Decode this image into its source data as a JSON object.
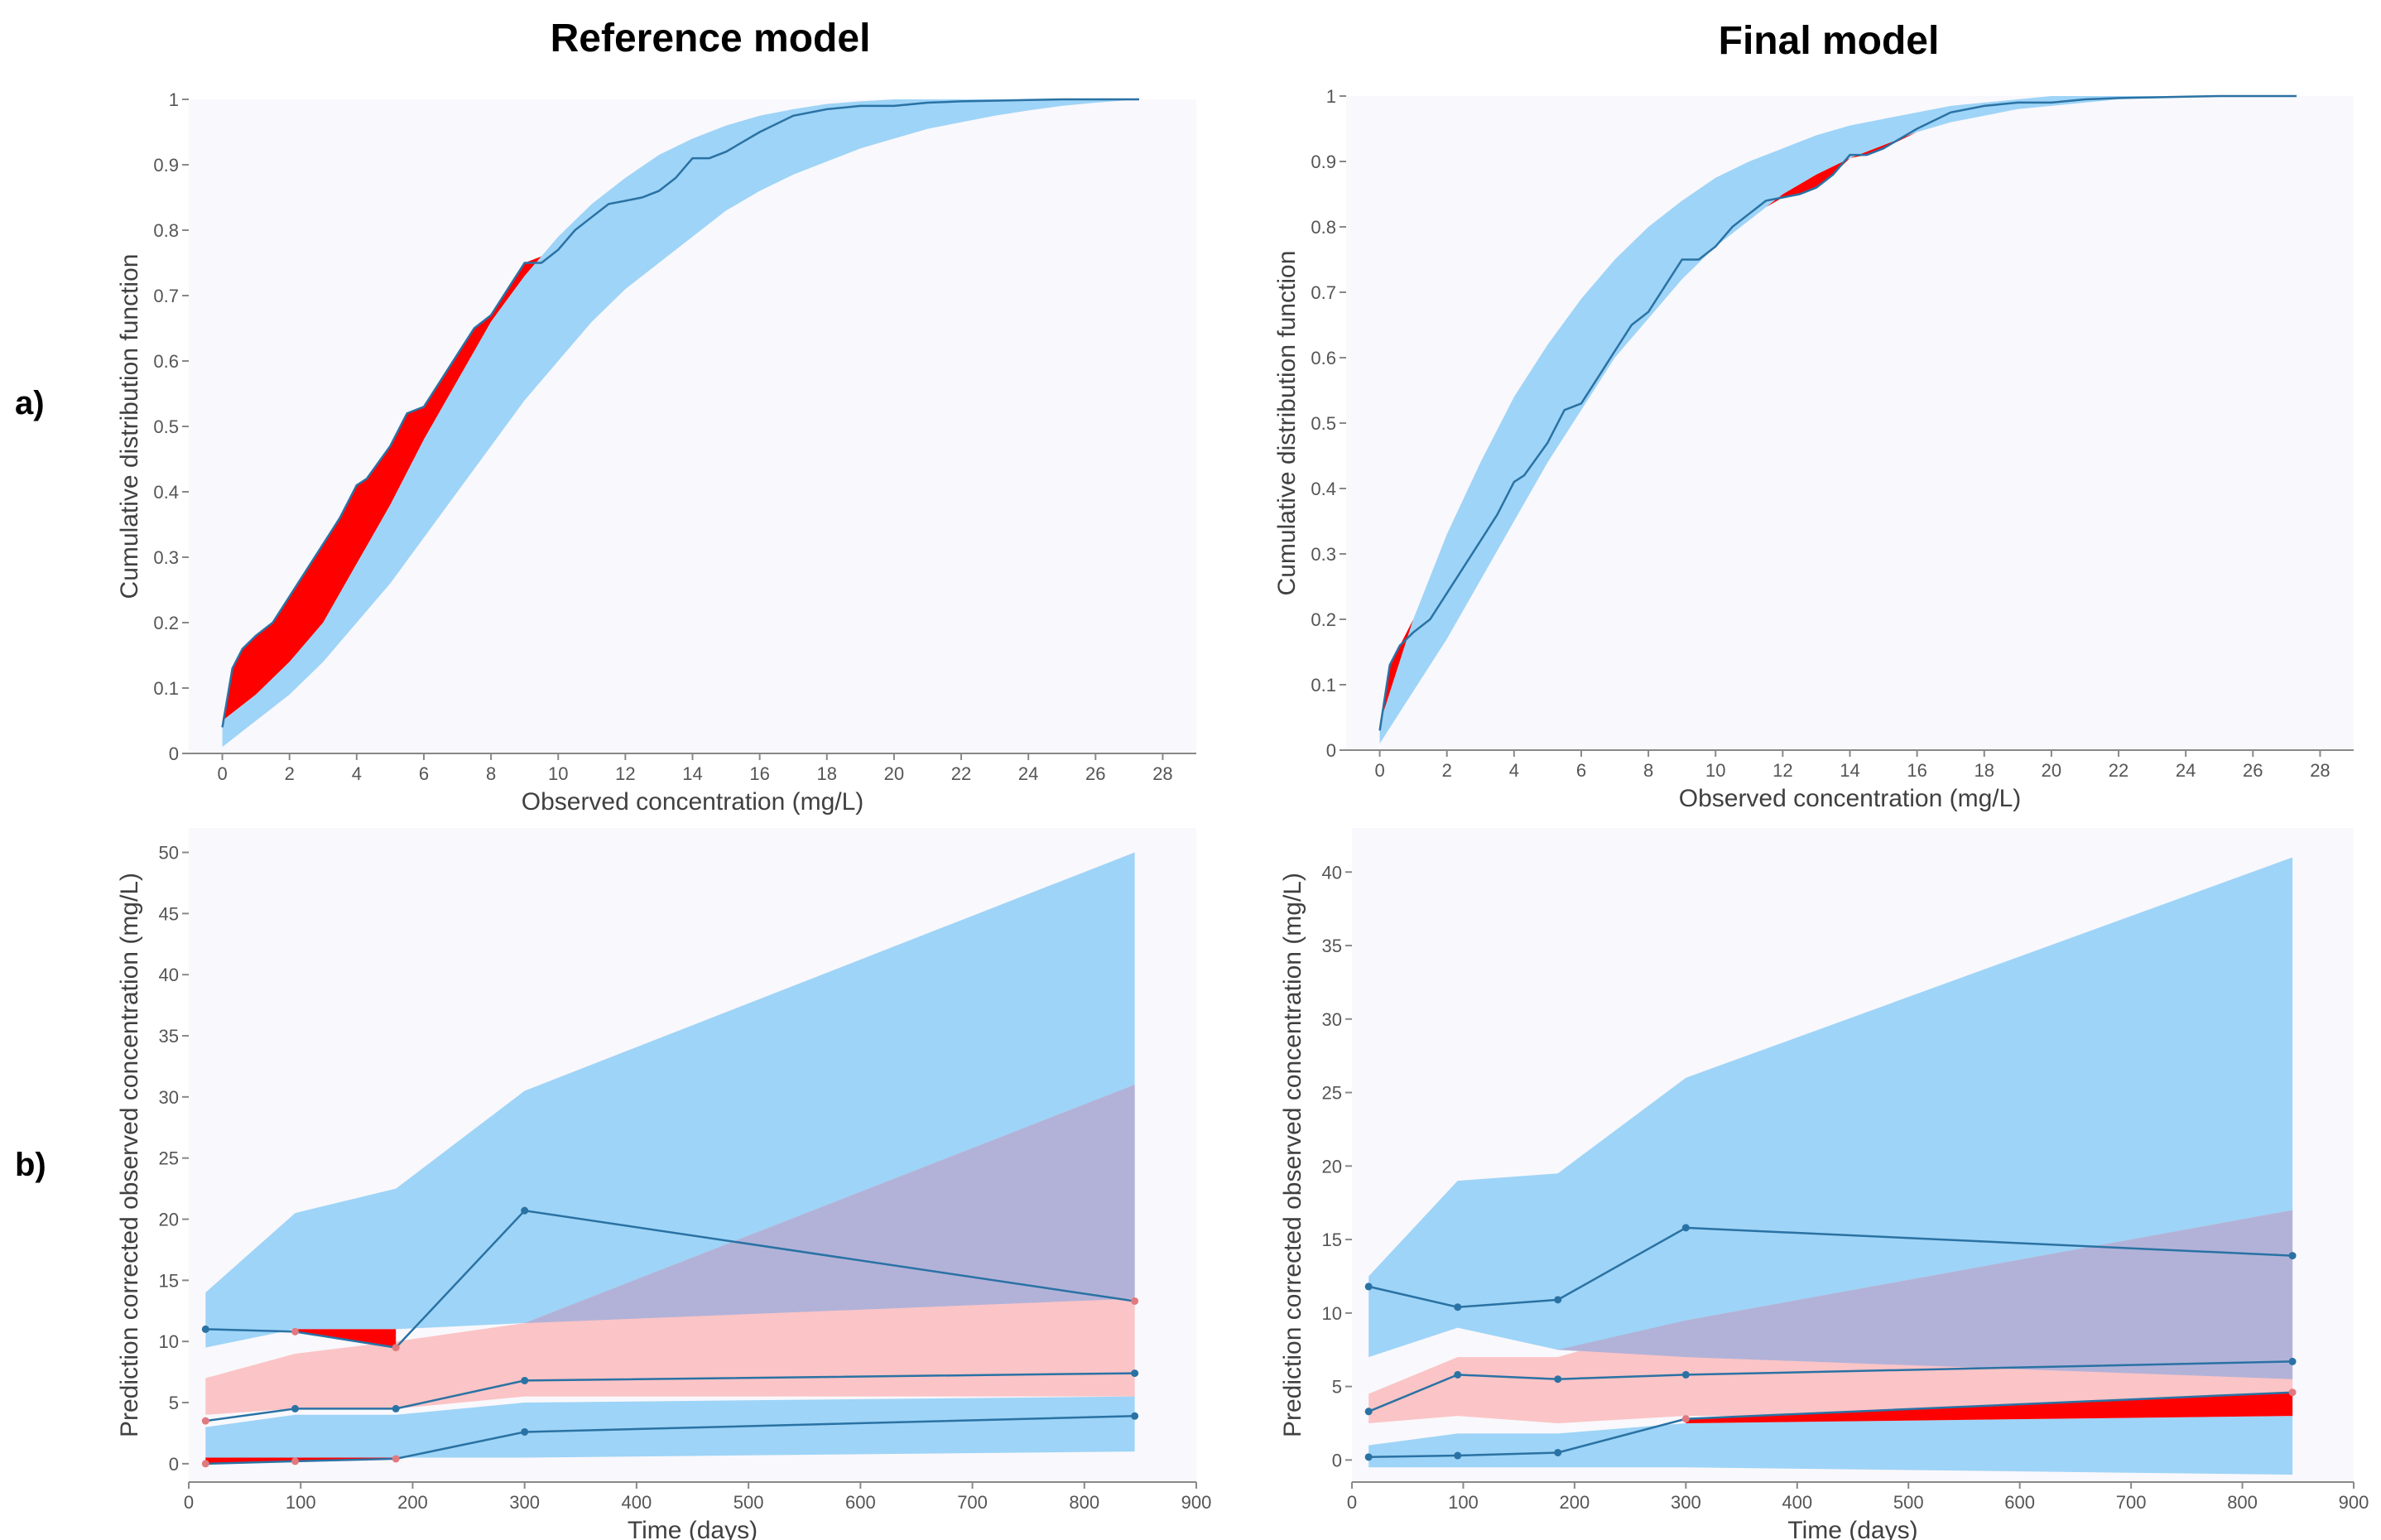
{
  "figure": {
    "column_titles": [
      "Reference model",
      "Final model"
    ],
    "row_labels": [
      "a)",
      "b)"
    ]
  },
  "colors": {
    "background": "#f9f8fc",
    "pi_band": "#9ed4f7",
    "median_band": "#fbc4c6",
    "overlap": "#b2b2d8",
    "outside_pi": "#ff0000",
    "observed_line": "#2a72a4",
    "observed_point_outside": "#e07a80"
  },
  "chart_data": [
    {
      "panel": "a-reference",
      "type": "area",
      "title": "",
      "xlabel": "Observed concentration (mg/L)",
      "ylabel": "Cumulative distribution function",
      "xlim": [
        -1,
        29
      ],
      "ylim": [
        0,
        1
      ],
      "xticks": [
        "0",
        "2",
        "4",
        "6",
        "8",
        "10",
        "12",
        "14",
        "16",
        "18",
        "20",
        "22",
        "24",
        "26",
        "28"
      ],
      "yticks": [
        "0",
        "0.1",
        "0.2",
        "0.3",
        "0.4",
        "0.5",
        "0.6",
        "0.7",
        "0.8",
        "0.9",
        "1"
      ],
      "grid": false,
      "legend": "none",
      "prediction_interval": {
        "x": [
          0,
          0.5,
          1,
          2,
          3,
          4,
          5,
          6,
          7,
          8,
          9,
          10,
          11,
          12,
          13,
          14,
          15,
          16,
          17,
          18,
          19,
          20,
          21,
          22,
          23,
          24,
          25,
          26,
          27.3
        ],
        "lower": [
          0.01,
          0.03,
          0.05,
          0.09,
          0.14,
          0.2,
          0.26,
          0.33,
          0.4,
          0.47,
          0.54,
          0.6,
          0.66,
          0.71,
          0.75,
          0.79,
          0.83,
          0.86,
          0.885,
          0.905,
          0.925,
          0.94,
          0.955,
          0.965,
          0.975,
          0.983,
          0.99,
          0.995,
          1.0
        ],
        "upper": [
          0.05,
          0.07,
          0.09,
          0.14,
          0.2,
          0.29,
          0.38,
          0.48,
          0.57,
          0.66,
          0.73,
          0.79,
          0.84,
          0.88,
          0.915,
          0.94,
          0.96,
          0.975,
          0.985,
          0.993,
          0.997,
          1.0,
          1.0,
          1.0,
          1.0,
          1.0,
          1.0,
          1.0,
          1.0
        ]
      },
      "observed": {
        "x": [
          0,
          0.3,
          0.6,
          1,
          1.5,
          2,
          2.5,
          3,
          3.5,
          4,
          4.3,
          5,
          5.5,
          6,
          6.5,
          7,
          7.5,
          8,
          8.5,
          9,
          9.5,
          10,
          10.5,
          11,
          11.5,
          12,
          12.5,
          13,
          13.5,
          14,
          14.5,
          15,
          16,
          17,
          18,
          19,
          20,
          21,
          22,
          23,
          24,
          25,
          26,
          27.3
        ],
        "y": [
          0.04,
          0.13,
          0.16,
          0.18,
          0.2,
          0.24,
          0.28,
          0.32,
          0.36,
          0.41,
          0.42,
          0.47,
          0.52,
          0.53,
          0.57,
          0.61,
          0.65,
          0.67,
          0.71,
          0.75,
          0.75,
          0.77,
          0.8,
          0.82,
          0.84,
          0.845,
          0.85,
          0.86,
          0.88,
          0.91,
          0.91,
          0.92,
          0.95,
          0.975,
          0.985,
          0.99,
          0.99,
          0.995,
          0.997,
          0.998,
          0.999,
          1.0,
          1.0,
          1.0
        ]
      }
    },
    {
      "panel": "a-final",
      "type": "area",
      "title": "",
      "xlabel": "Observed concentration (mg/L)",
      "ylabel": "Cumulative distribution function",
      "xlim": [
        -1,
        29
      ],
      "ylim": [
        0,
        1
      ],
      "xticks": [
        "0",
        "2",
        "4",
        "6",
        "8",
        "10",
        "12",
        "14",
        "16",
        "18",
        "20",
        "22",
        "24",
        "26",
        "28"
      ],
      "yticks": [
        "0",
        "0.1",
        "0.2",
        "0.3",
        "0.4",
        "0.5",
        "0.6",
        "0.7",
        "0.8",
        "0.9",
        "1"
      ],
      "grid": false,
      "legend": "none",
      "prediction_interval": {
        "x": [
          0,
          0.5,
          1,
          2,
          3,
          4,
          5,
          6,
          7,
          8,
          9,
          10,
          11,
          12,
          13,
          14,
          15,
          16,
          17,
          18,
          19,
          20,
          21,
          22,
          23,
          24,
          25,
          26,
          27.3
        ],
        "lower": [
          0.01,
          0.05,
          0.09,
          0.17,
          0.26,
          0.35,
          0.44,
          0.52,
          0.6,
          0.66,
          0.72,
          0.77,
          0.81,
          0.85,
          0.88,
          0.905,
          0.925,
          0.945,
          0.96,
          0.97,
          0.98,
          0.985,
          0.99,
          0.995,
          0.997,
          0.998,
          1.0,
          1.0,
          1.0
        ],
        "upper": [
          0.04,
          0.12,
          0.2,
          0.33,
          0.44,
          0.54,
          0.62,
          0.69,
          0.75,
          0.8,
          0.84,
          0.875,
          0.9,
          0.92,
          0.94,
          0.955,
          0.965,
          0.975,
          0.985,
          0.99,
          0.995,
          1.0,
          1.0,
          1.0,
          1.0,
          1.0,
          1.0,
          1.0,
          1.0
        ]
      },
      "observed": {
        "x": [
          0,
          0.3,
          0.6,
          1,
          1.5,
          2,
          2.5,
          3,
          3.5,
          4,
          4.3,
          5,
          5.5,
          6,
          6.5,
          7,
          7.5,
          8,
          8.5,
          9,
          9.5,
          10,
          10.5,
          11,
          11.5,
          12,
          12.5,
          13,
          13.5,
          14,
          14.5,
          15,
          16,
          17,
          18,
          19,
          20,
          21,
          22,
          23,
          24,
          25,
          26,
          27.3
        ],
        "y": [
          0.03,
          0.13,
          0.16,
          0.18,
          0.2,
          0.24,
          0.28,
          0.32,
          0.36,
          0.41,
          0.42,
          0.47,
          0.52,
          0.53,
          0.57,
          0.61,
          0.65,
          0.67,
          0.71,
          0.75,
          0.75,
          0.77,
          0.8,
          0.82,
          0.84,
          0.845,
          0.85,
          0.86,
          0.88,
          0.91,
          0.91,
          0.92,
          0.95,
          0.975,
          0.985,
          0.99,
          0.99,
          0.995,
          0.997,
          0.998,
          0.999,
          1.0,
          1.0,
          1.0
        ]
      }
    },
    {
      "panel": "b-reference",
      "type": "line",
      "title": "",
      "xlabel": "Time (days)",
      "ylabel": "Prediction corrected observed concentration (mg/L)",
      "xlim": [
        0,
        900
      ],
      "ylim": [
        -1.5,
        52
      ],
      "xticks": [
        "0",
        "100",
        "200",
        "300",
        "400",
        "500",
        "600",
        "700",
        "800",
        "900"
      ],
      "yticks": [
        "0",
        "5",
        "10",
        "15",
        "20",
        "25",
        "30",
        "35",
        "40",
        "45",
        "50"
      ],
      "grid": false,
      "legend": "none",
      "x": [
        15,
        95,
        185,
        300,
        845
      ],
      "bands": {
        "upper_pi": {
          "lower": [
            9.5,
            11.0,
            11.0,
            11.5,
            13.5
          ],
          "upper": [
            14.0,
            20.5,
            22.5,
            30.5,
            50.0
          ]
        },
        "median_pi": {
          "lower": [
            4.0,
            4.5,
            4.5,
            5.5,
            5.5
          ],
          "upper": [
            7.0,
            9.0,
            10.0,
            11.5,
            31.0
          ]
        },
        "lower_pi": {
          "lower": [
            0.5,
            0.5,
            0.5,
            0.5,
            1.0
          ],
          "upper": [
            3.0,
            4.0,
            4.0,
            5.0,
            5.5
          ]
        }
      },
      "observed": {
        "upper": [
          11.0,
          10.8,
          9.5,
          20.7,
          13.3
        ],
        "median": [
          3.5,
          4.5,
          4.5,
          6.8,
          7.4
        ],
        "lower": [
          0.0,
          0.2,
          0.4,
          2.6,
          3.9
        ]
      }
    },
    {
      "panel": "b-final",
      "type": "line",
      "title": "",
      "xlabel": "Time (days)",
      "ylabel": "Prediction corrected observed concentration (mg/L)",
      "xlim": [
        0,
        900
      ],
      "ylim": [
        -1.5,
        43
      ],
      "xticks": [
        "0",
        "100",
        "200",
        "300",
        "400",
        "500",
        "600",
        "700",
        "800",
        "900"
      ],
      "yticks": [
        "0",
        "5",
        "10",
        "15",
        "20",
        "25",
        "30",
        "35",
        "40"
      ],
      "grid": false,
      "legend": "none",
      "x": [
        15,
        95,
        185,
        300,
        845
      ],
      "bands": {
        "upper_pi": {
          "lower": [
            7.0,
            9.0,
            7.5,
            7.0,
            5.5
          ],
          "upper": [
            12.5,
            19.0,
            19.5,
            26.0,
            41.0
          ]
        },
        "median_pi": {
          "lower": [
            2.5,
            3.0,
            2.5,
            3.0,
            3.0
          ],
          "upper": [
            4.5,
            7.0,
            7.0,
            9.5,
            17.0
          ]
        },
        "lower_pi": {
          "lower": [
            -0.5,
            -0.5,
            -0.5,
            -0.5,
            -1.0
          ],
          "upper": [
            1.0,
            1.8,
            1.8,
            2.5,
            3.0
          ]
        }
      },
      "observed": {
        "upper": [
          11.8,
          10.4,
          10.9,
          15.8,
          13.9
        ],
        "median": [
          3.3,
          5.8,
          5.5,
          5.8,
          6.7
        ],
        "lower": [
          0.2,
          0.3,
          0.5,
          2.8,
          4.6
        ]
      }
    }
  ]
}
